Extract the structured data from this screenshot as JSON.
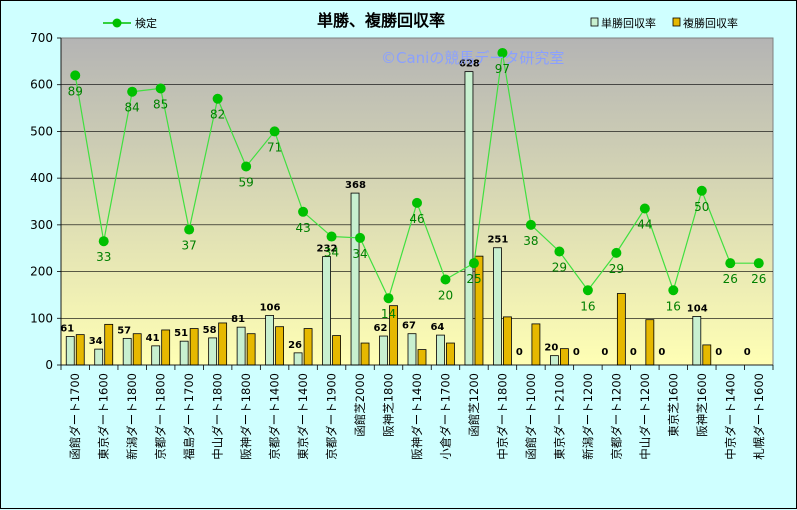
{
  "chart_data": {
    "type": "bar",
    "title": "単勝、複勝回収率",
    "watermark": "©Caniの競馬データ研究室",
    "categories": [
      "函館ダート1700",
      "東京ダート1600",
      "新潟ダート1800",
      "京都ダート1800",
      "福島ダート1700",
      "中山ダート1800",
      "阪神ダート1800",
      "京都ダート1400",
      "東京ダート1400",
      "京都ダート1900",
      "函館芝2000",
      "阪神芝1800",
      "阪神ダート1400",
      "小倉ダート1700",
      "函館芝1200",
      "中京ダート1800",
      "函館ダート1000",
      "東京ダート2100",
      "新潟ダート1200",
      "京都ダート1200",
      "中山ダート1200",
      "東京芝1600",
      "阪神芝1600",
      "中京ダート1400",
      "札幌ダート1600"
    ],
    "series": [
      {
        "name": "単勝回収率",
        "color": "#c8f0d0",
        "values": [
          61,
          34,
          57,
          41,
          51,
          58,
          81,
          106,
          26,
          232,
          368,
          62,
          67,
          64,
          628,
          251,
          0,
          20,
          0,
          0,
          0,
          0,
          104,
          0,
          0
        ]
      },
      {
        "name": "複勝回収率",
        "color": "#e6b800",
        "values": [
          65,
          87,
          67,
          75,
          78,
          90,
          67,
          82,
          78,
          63,
          47,
          127,
          33,
          47,
          233,
          103,
          88,
          35,
          0,
          153,
          97,
          0,
          43,
          0,
          0
        ]
      },
      {
        "name": "検定",
        "color": "#00c000",
        "values": [
          620,
          265,
          585,
          592,
          290,
          570,
          425,
          500,
          328,
          275,
          272,
          143,
          347,
          183,
          218,
          668,
          300,
          243,
          160,
          240,
          335,
          160,
          373,
          218,
          218
        ],
        "labels": [
          "89",
          "33",
          "84",
          "85",
          "37",
          "82",
          "59",
          "71",
          "43",
          "34",
          "34",
          "14",
          "46",
          "20",
          "25",
          "97",
          "38",
          "29",
          "16",
          "29",
          "44",
          "16",
          "50",
          "26",
          "26"
        ]
      }
    ],
    "ylim": [
      0,
      700
    ],
    "yticks": [
      "0",
      "100",
      "200",
      "300",
      "400",
      "500",
      "600",
      "700"
    ]
  },
  "colors": {
    "plot_top": "#b4b4b4",
    "plot_bottom": "#ffffb4",
    "background": "#cfffff"
  }
}
